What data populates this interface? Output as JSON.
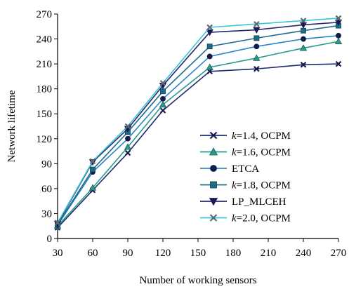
{
  "chart_data": {
    "type": "line",
    "xlabel": "Number of working sensors",
    "ylabel": "Network lifetime",
    "xlim": [
      30,
      270
    ],
    "ylim": [
      0,
      270
    ],
    "xticks": [
      "30",
      "60",
      "90",
      "120",
      "150",
      "180",
      "210",
      "240",
      "270"
    ],
    "yticks": [
      "0",
      "30",
      "60",
      "90",
      "120",
      "150",
      "180",
      "210",
      "240",
      "270"
    ],
    "grid": false,
    "legend_position": "bottom-right",
    "series": [
      {
        "name": "k=1.4, OCPM",
        "name_italic": "k",
        "name_rest": "=1.4, OCPM",
        "marker": "x",
        "color": "#1f2d6e",
        "marker_color": "#141a4a",
        "x": [
          30,
          60,
          90,
          120,
          160,
          200,
          240,
          270
        ],
        "y": [
          13,
          58,
          103,
          154,
          201,
          204,
          209,
          210
        ]
      },
      {
        "name": "k=1.6, OCPM",
        "name_italic": "k",
        "name_rest": "=1.6, OCPM",
        "marker": "triangle",
        "color": "#2a9a8a",
        "marker_color": "#2a9a8a",
        "x": [
          30,
          60,
          90,
          120,
          160,
          200,
          240,
          270
        ],
        "y": [
          15,
          61,
          110,
          161,
          206,
          217,
          229,
          237
        ]
      },
      {
        "name": "ETCA",
        "name_italic": "",
        "name_rest": "ETCA",
        "marker": "circle",
        "color": "#2b84c9",
        "marker_color": "#141a4a",
        "x": [
          30,
          60,
          90,
          120,
          160,
          200,
          240,
          270
        ],
        "y": [
          16,
          80,
          120,
          168,
          219,
          231,
          240,
          244
        ]
      },
      {
        "name": "k=1.8, OCPM",
        "name_italic": "k",
        "name_rest": "=1.8, OCPM",
        "marker": "square",
        "color": "#1f6b8a",
        "marker_color": "#1a6e85",
        "x": [
          30,
          60,
          90,
          120,
          160,
          200,
          240,
          270
        ],
        "y": [
          17,
          83,
          128,
          177,
          231,
          241,
          250,
          256
        ]
      },
      {
        "name": "LP_MLCEH",
        "name_italic": "",
        "name_rest": "LP_MLCEH",
        "marker": "triangle-down",
        "color": "#2a2870",
        "marker_color": "#1b1a55",
        "x": [
          30,
          60,
          90,
          120,
          160,
          200,
          240,
          270
        ],
        "y": [
          18,
          92,
          132,
          184,
          248,
          251,
          257,
          260
        ]
      },
      {
        "name": "k=2.0, OCPM",
        "name_italic": "k",
        "name_rest": "=2.0, OCPM",
        "marker": "x",
        "color": "#39c7d6",
        "marker_color": "#5a6b73",
        "x": [
          30,
          60,
          90,
          120,
          160,
          200,
          240,
          270
        ],
        "y": [
          19,
          93,
          135,
          187,
          254,
          258,
          262,
          265
        ]
      }
    ]
  }
}
